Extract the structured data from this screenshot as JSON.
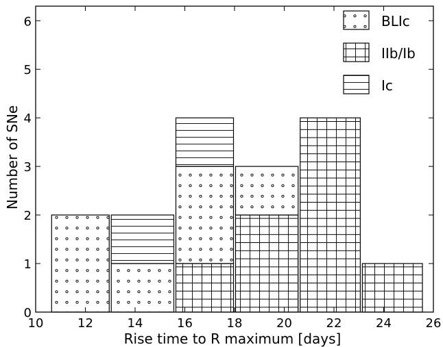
{
  "chart_data": {
    "type": "bar",
    "stacked": true,
    "title": "",
    "xlabel": "Rise time to R maximum [days]",
    "ylabel": "Number of SNe",
    "xlim": [
      10,
      26
    ],
    "ylim": [
      0,
      6.3
    ],
    "xticks": [
      10,
      12,
      14,
      16,
      18,
      20,
      22,
      24,
      26
    ],
    "yticks": [
      0,
      1,
      2,
      3,
      4,
      5,
      6
    ],
    "bin_edges": [
      10.6,
      13.0,
      15.6,
      18.0,
      20.6,
      23.1,
      25.6
    ],
    "series": [
      {
        "name": "IIb/Ib",
        "pattern": "grid",
        "values": [
          0,
          0,
          1,
          2,
          4,
          1
        ]
      },
      {
        "name": "BLIc",
        "pattern": "dots",
        "values": [
          2,
          1,
          2,
          1,
          0,
          0
        ]
      },
      {
        "name": "Ic",
        "pattern": "hlines",
        "values": [
          0,
          1,
          1,
          0,
          0,
          0
        ]
      }
    ],
    "legend_order": [
      "BLIc",
      "IIb/Ib",
      "Ic"
    ],
    "legend_position": "top-right",
    "grid": false
  }
}
